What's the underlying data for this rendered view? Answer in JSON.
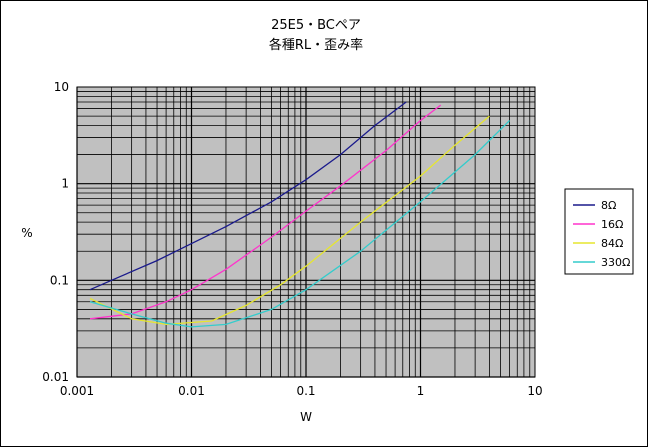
{
  "chart_data": {
    "type": "line",
    "title": "25E5・BCペア",
    "subtitle": "各種RL・歪み率",
    "xlabel": "W",
    "ylabel": "%",
    "x_scale": "log",
    "y_scale": "log",
    "xlim": [
      0.001,
      10
    ],
    "ylim": [
      0.01,
      10
    ],
    "x_ticks": [
      "0.001",
      "0.01",
      "0.1",
      "1",
      "10"
    ],
    "y_ticks": [
      "0.01",
      "0.1",
      "1",
      "10"
    ],
    "grid": true,
    "plot_background": "#c0c0c0",
    "legend_placement": "right",
    "series": [
      {
        "name": "8Ω",
        "color": "#1a1a8c",
        "points": [
          [
            0.0013,
            0.08
          ],
          [
            0.002,
            0.1
          ],
          [
            0.005,
            0.16
          ],
          [
            0.01,
            0.24
          ],
          [
            0.02,
            0.36
          ],
          [
            0.05,
            0.65
          ],
          [
            0.1,
            1.1
          ],
          [
            0.2,
            2.0
          ],
          [
            0.4,
            4.0
          ],
          [
            0.75,
            7.0
          ]
        ]
      },
      {
        "name": "16Ω",
        "color": "#ff33cc",
        "points": [
          [
            0.0013,
            0.04
          ],
          [
            0.003,
            0.045
          ],
          [
            0.006,
            0.06
          ],
          [
            0.01,
            0.08
          ],
          [
            0.02,
            0.13
          ],
          [
            0.05,
            0.28
          ],
          [
            0.1,
            0.52
          ],
          [
            0.2,
            0.95
          ],
          [
            0.5,
            2.2
          ],
          [
            1.0,
            4.5
          ],
          [
            1.5,
            6.5
          ]
        ]
      },
      {
        "name": "84Ω",
        "color": "#e6e62e",
        "points": [
          [
            0.0013,
            0.065
          ],
          [
            0.003,
            0.04
          ],
          [
            0.006,
            0.035
          ],
          [
            0.015,
            0.038
          ],
          [
            0.03,
            0.055
          ],
          [
            0.06,
            0.09
          ],
          [
            0.1,
            0.14
          ],
          [
            0.3,
            0.4
          ],
          [
            1.0,
            1.2
          ],
          [
            2.0,
            2.5
          ],
          [
            4.0,
            5.0
          ]
        ]
      },
      {
        "name": "330Ω",
        "color": "#33cccc",
        "points": [
          [
            0.0013,
            0.06
          ],
          [
            0.003,
            0.045
          ],
          [
            0.006,
            0.036
          ],
          [
            0.01,
            0.033
          ],
          [
            0.02,
            0.035
          ],
          [
            0.05,
            0.05
          ],
          [
            0.1,
            0.08
          ],
          [
            0.3,
            0.2
          ],
          [
            1.0,
            0.65
          ],
          [
            3.0,
            2.0
          ],
          [
            6.0,
            4.5
          ]
        ]
      }
    ]
  }
}
